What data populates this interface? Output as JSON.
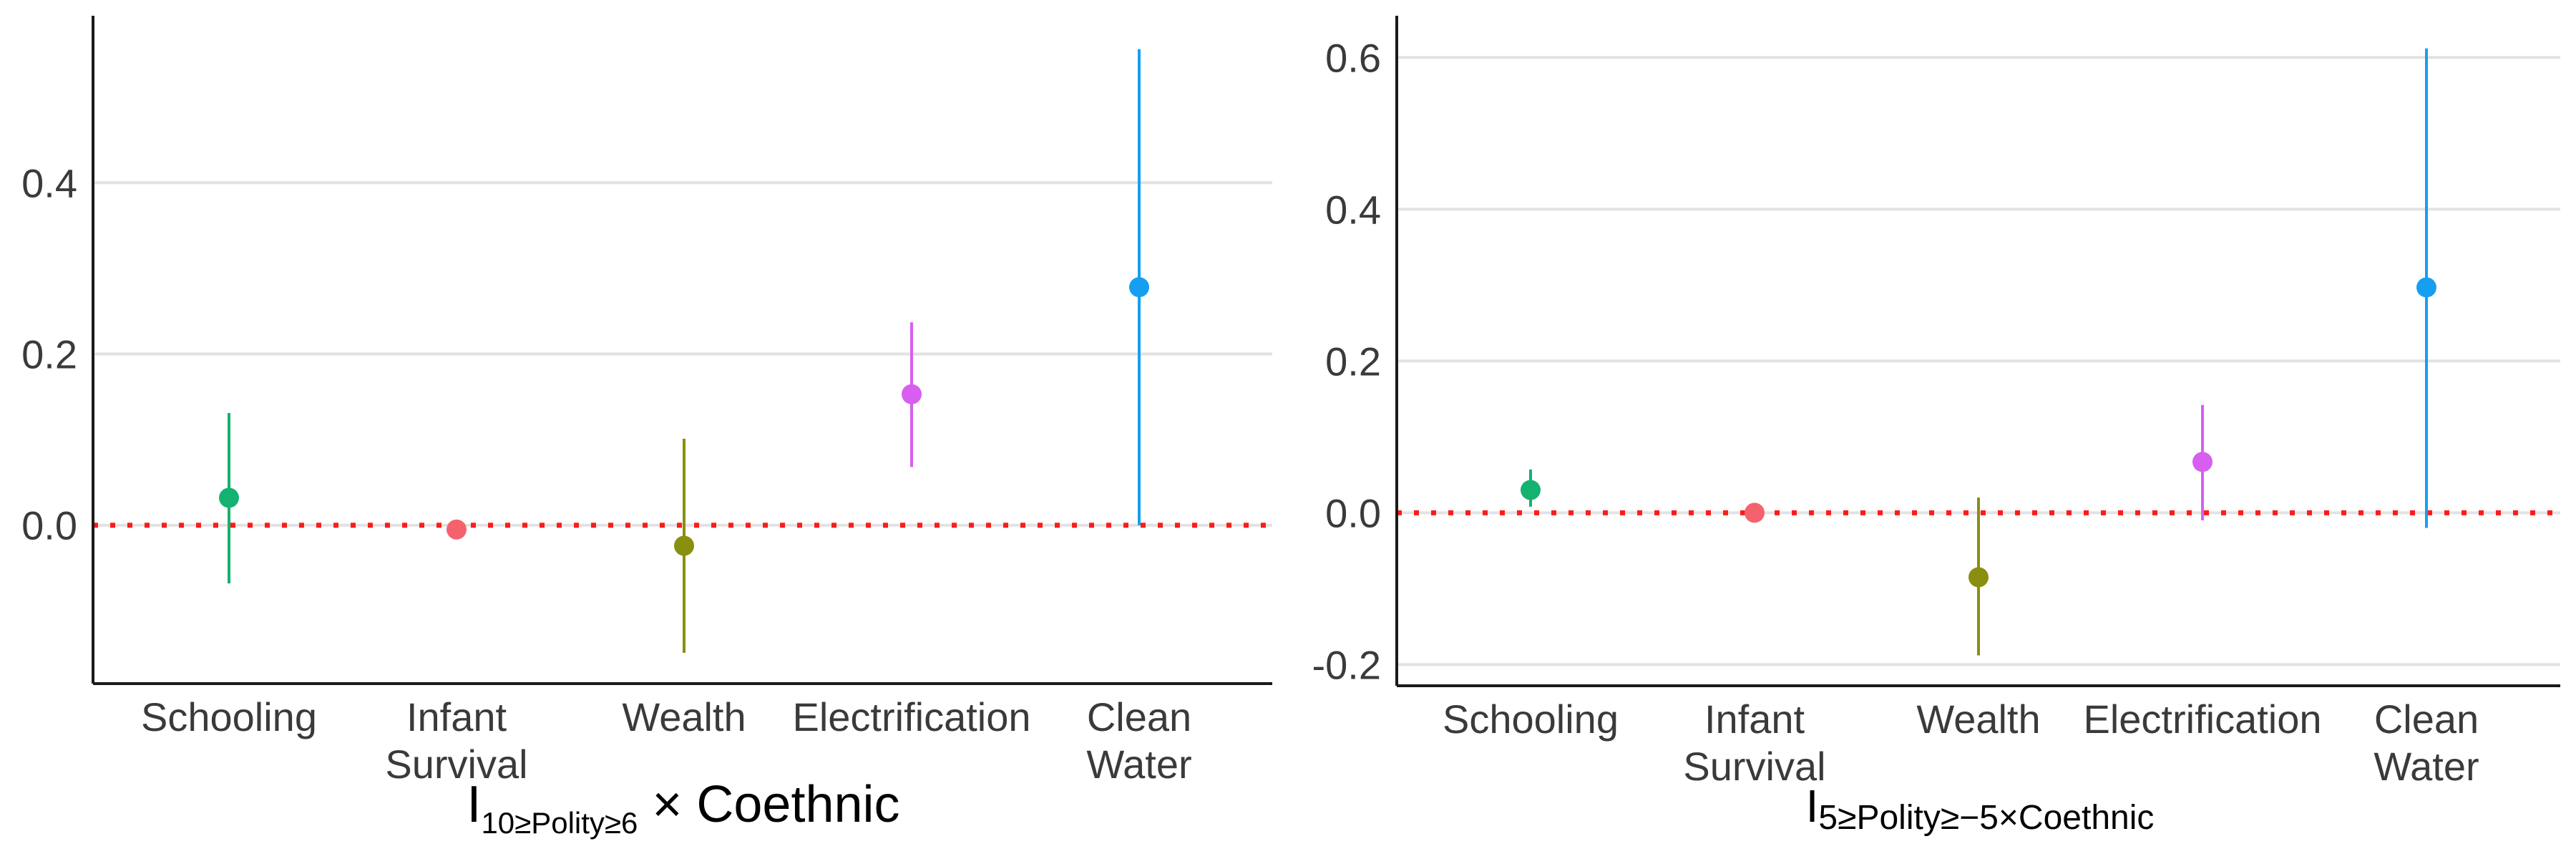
{
  "chart_data": [
    {
      "type": "scatter",
      "subtype": "coefficient-plot",
      "categories": [
        "Schooling",
        "Infant\nSurvival",
        "Wealth",
        "Electrification",
        "Clean\nWater"
      ],
      "estimates": [
        0.032,
        -0.005,
        -0.024,
        0.153,
        0.278
      ],
      "lower": [
        -0.068,
        -0.016,
        -0.149,
        0.068,
        0.0
      ],
      "upper": [
        0.131,
        0.004,
        0.101,
        0.237,
        0.556
      ],
      "colors": [
        "#13b270",
        "#f4636d",
        "#898f0e",
        "#d85ef0",
        "#169ff0"
      ],
      "yticks": [
        0.0,
        0.2,
        0.4
      ],
      "ytick_labels": [
        "0.0",
        "0.2",
        "0.4"
      ],
      "ylim": [
        -0.185,
        0.595
      ],
      "reference_line": {
        "y": 0,
        "color": "#ff1a1a",
        "style": "dotted"
      },
      "grid": true,
      "xlabel": {
        "base": "I",
        "sub": "10≥Polity≥6",
        "rest": " × Coethnic"
      }
    },
    {
      "type": "scatter",
      "subtype": "coefficient-plot",
      "categories": [
        "Schooling",
        "Infant\nSurvival",
        "Wealth",
        "Electrification",
        "Clean\nWater"
      ],
      "estimates": [
        0.03,
        0.0,
        -0.085,
        0.067,
        0.297
      ],
      "lower": [
        0.008,
        -0.004,
        -0.188,
        -0.01,
        -0.02
      ],
      "upper": [
        0.057,
        0.004,
        0.02,
        0.142,
        0.612
      ],
      "colors": [
        "#13b270",
        "#f4636d",
        "#898f0e",
        "#d85ef0",
        "#169ff0"
      ],
      "yticks": [
        -0.2,
        0.0,
        0.2,
        0.4,
        0.6
      ],
      "ytick_labels": [
        "-0.2",
        "0.0",
        "0.2",
        "0.4",
        "0.6"
      ],
      "ylim": [
        -0.228,
        0.655
      ],
      "reference_line": {
        "y": 0,
        "color": "#ff1a1a",
        "style": "dotted"
      },
      "grid": true,
      "xlabel": {
        "base": "I",
        "sub": "5≥Polity≥−5×Coethnic",
        "rest": ""
      }
    }
  ]
}
